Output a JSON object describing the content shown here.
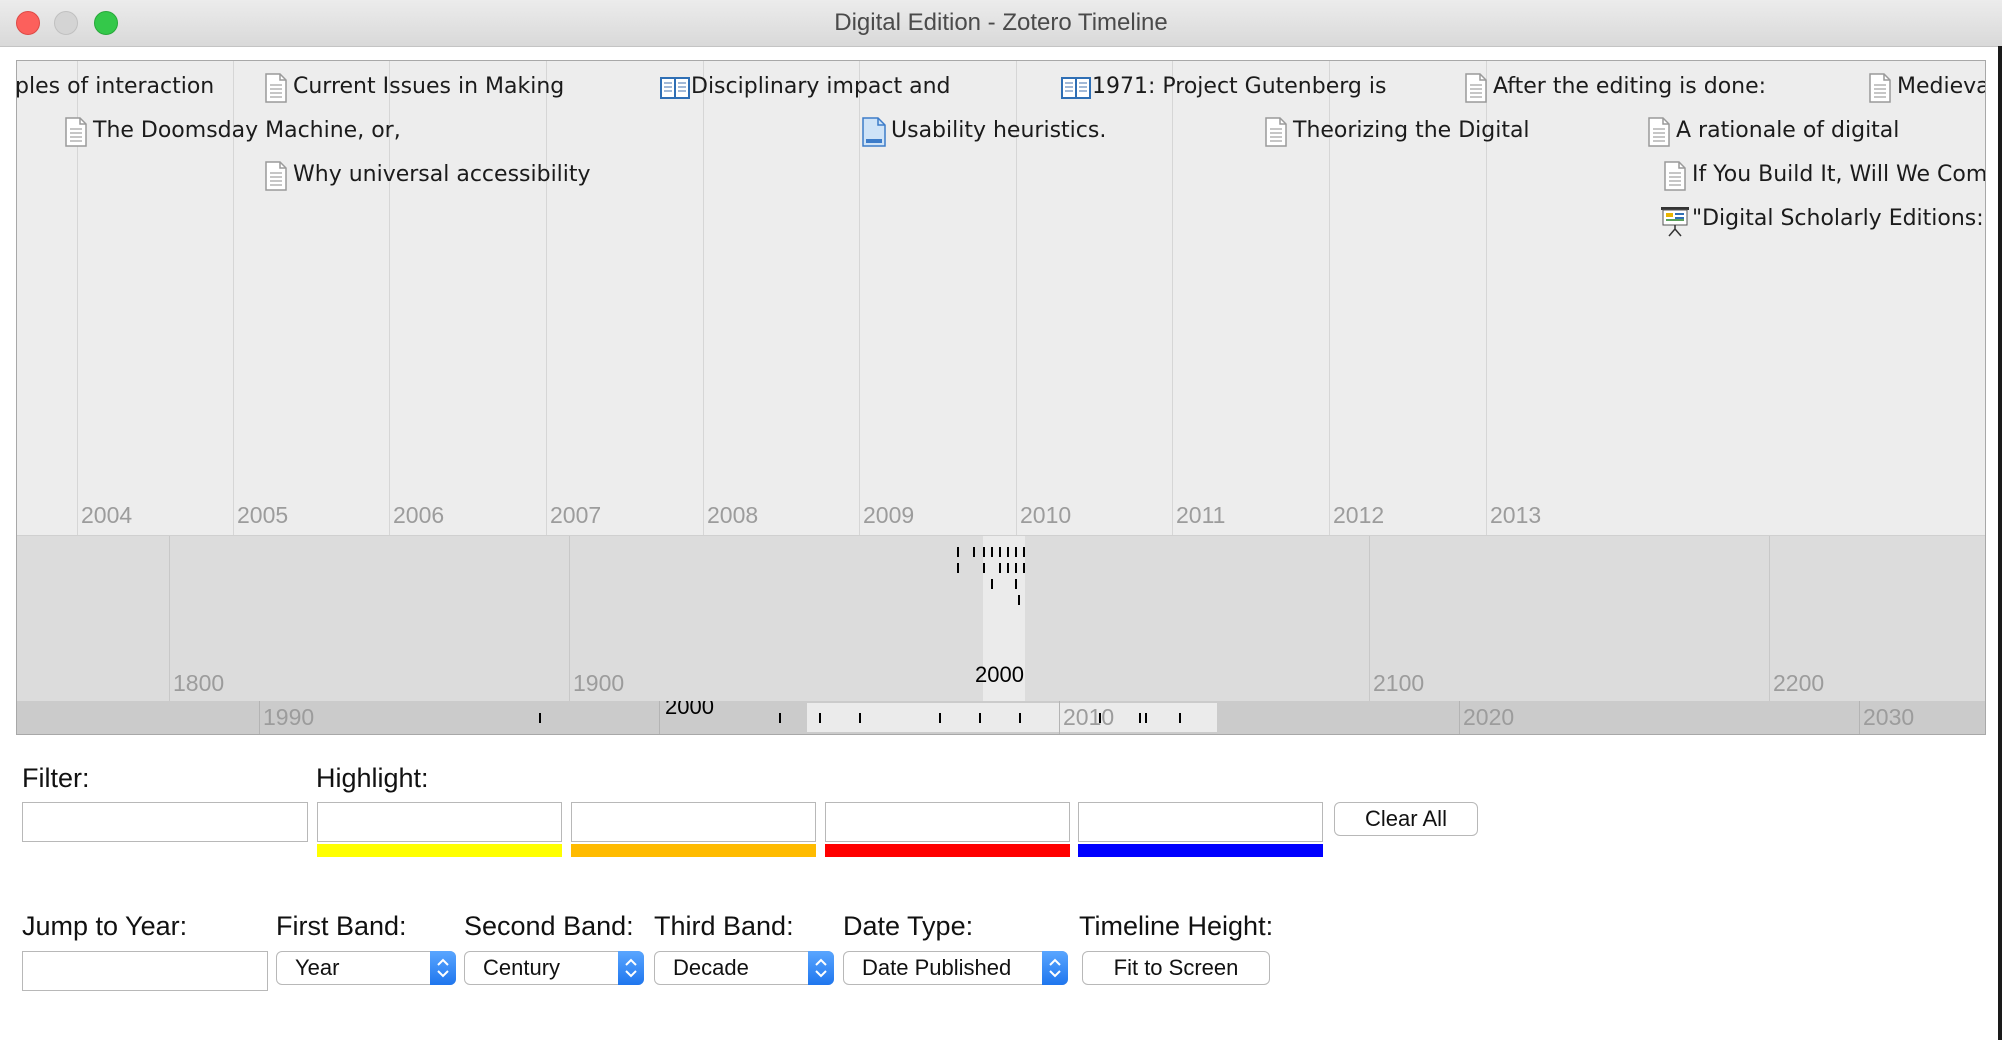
{
  "window": {
    "title": "Digital Edition - Zotero Timeline"
  },
  "timeline": {
    "band1": {
      "unit": "Year",
      "year_labels": [
        "2004",
        "2005",
        "2006",
        "2007",
        "2008",
        "2009",
        "2010",
        "2011",
        "2012",
        "2013"
      ],
      "events": [
        {
          "label": "ples of interaction",
          "icon": "none"
        },
        {
          "label": "The Doomsday Machine, or,",
          "icon": "document-icon"
        },
        {
          "label": "Current Issues in Making",
          "icon": "document-icon"
        },
        {
          "label": "Why universal accessibility",
          "icon": "document-icon"
        },
        {
          "label": "Disciplinary impact and",
          "icon": "book-icon"
        },
        {
          "label": "Usability heuristics.",
          "icon": "blue-document-icon"
        },
        {
          "label": "1971: Project Gutenberg is",
          "icon": "book-icon"
        },
        {
          "label": "Theorizing the Digital",
          "icon": "document-icon"
        },
        {
          "label": "After the editing is done:",
          "icon": "document-icon"
        },
        {
          "label": "A rationale of digital",
          "icon": "document-icon"
        },
        {
          "label": "If You Build It, Will We Com",
          "icon": "document-icon"
        },
        {
          "label": "\"Digital Scholarly Editions:",
          "icon": "presentation-icon"
        },
        {
          "label": "Medieva",
          "icon": "document-icon"
        }
      ]
    },
    "band2": {
      "unit": "Century",
      "year_labels": [
        "1800",
        "1900",
        "2000",
        "2100",
        "2200"
      ]
    },
    "band3": {
      "unit": "Decade",
      "year_labels": [
        "1990",
        "2000",
        "2010",
        "2020",
        "2030"
      ]
    }
  },
  "controls": {
    "filter": {
      "label": "Filter:",
      "value": ""
    },
    "highlight": {
      "label": "Highlight:",
      "fields": [
        {
          "value": "",
          "color": "#ffff00"
        },
        {
          "value": "",
          "color": "#ffbb00"
        },
        {
          "value": "",
          "color": "#ff0000"
        },
        {
          "value": "",
          "color": "#0000ff"
        }
      ]
    },
    "clear_all": "Clear All",
    "jump_to_year": {
      "label": "Jump to Year:",
      "value": ""
    },
    "first_band": {
      "label": "First Band:",
      "value": "Year"
    },
    "second_band": {
      "label": "Second Band:",
      "value": "Century"
    },
    "third_band": {
      "label": "Third Band:",
      "value": "Decade"
    },
    "date_type": {
      "label": "Date Type:",
      "value": "Date Published"
    },
    "timeline_height": {
      "label": "Timeline Height:",
      "button": "Fit to Screen"
    }
  }
}
